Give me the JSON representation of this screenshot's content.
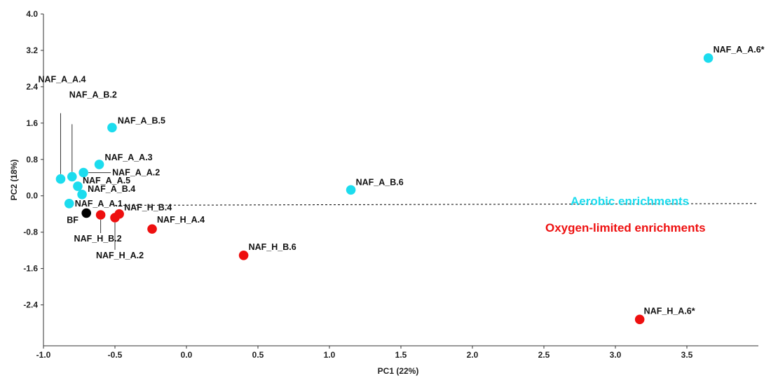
{
  "chart_data": {
    "type": "scatter",
    "title": "",
    "xlabel": "PC1 (22%)",
    "ylabel": "PC2 (18%)",
    "xlim": [
      -1.0,
      4.0
    ],
    "ylim": [
      -3.3,
      4.0
    ],
    "x_ticks": [
      "-1.0",
      "-0.5",
      "0.0",
      "0.5",
      "1.0",
      "1.5",
      "2.0",
      "2.5",
      "3.0",
      "3.5"
    ],
    "y_ticks": [
      "4.0",
      "3.2",
      "2.4",
      "1.6",
      "0.8",
      "0.0",
      "-0.8",
      "-1.6",
      "-2.4"
    ],
    "grid": false,
    "colors": {
      "aerobic": "#1cdcee",
      "oxygen_limited": "#ee0f0f",
      "bf": "#000000",
      "axis": "#333333"
    },
    "series": [
      {
        "name": "Aerobic enrichments",
        "color": "#1cdcee",
        "points": [
          {
            "label": "NAF_A_A.6*",
            "x": 3.65,
            "y": 3.03
          },
          {
            "label": "NAF_A_B.5",
            "x": -0.52,
            "y": 1.5
          },
          {
            "label": "NAF_A_A.4",
            "x": -0.88,
            "y": 0.37
          },
          {
            "label": "NAF_A_B.2",
            "x": -0.8,
            "y": 0.42
          },
          {
            "label": "NAF_A_A.3",
            "x": -0.61,
            "y": 0.69
          },
          {
            "label": "NAF_A_A.2",
            "x": -0.72,
            "y": 0.51
          },
          {
            "label": "NAF_A_A.5",
            "x": -0.76,
            "y": 0.21
          },
          {
            "label": "NAF_A_B.4",
            "x": -0.73,
            "y": 0.03
          },
          {
            "label": "NAF_A_A.1",
            "x": -0.82,
            "y": -0.17
          },
          {
            "label": "NAF_A_B.6",
            "x": 1.15,
            "y": 0.13
          }
        ]
      },
      {
        "name": "Oxygen-limited enrichments",
        "color": "#ee0f0f",
        "points": [
          {
            "label": "NAF_H_B.2",
            "x": -0.6,
            "y": -0.42
          },
          {
            "label": "NAF_H_A.2",
            "x": -0.5,
            "y": -0.48
          },
          {
            "label": "NAF_H_B.4",
            "x": -0.47,
            "y": -0.4
          },
          {
            "label": "NAF_H_A.4",
            "x": -0.24,
            "y": -0.73
          },
          {
            "label": "NAF_H_B.6",
            "x": 0.4,
            "y": -1.31
          },
          {
            "label": "NAF_H_A.6*",
            "x": 3.17,
            "y": -2.72
          }
        ]
      },
      {
        "name": "BF",
        "color": "#000000",
        "points": [
          {
            "label": "BF",
            "x": -0.7,
            "y": -0.38
          }
        ]
      }
    ],
    "annotations": [
      {
        "text": "Aerobic enrichments",
        "color": "#1cdcee"
      },
      {
        "text": "Oxygen-limited enrichments",
        "color": "#ee0f0f"
      }
    ],
    "separator": {
      "style": "dashed",
      "from": [
        -0.5,
        -0.21
      ],
      "to": [
        4.0,
        -0.17
      ]
    }
  }
}
